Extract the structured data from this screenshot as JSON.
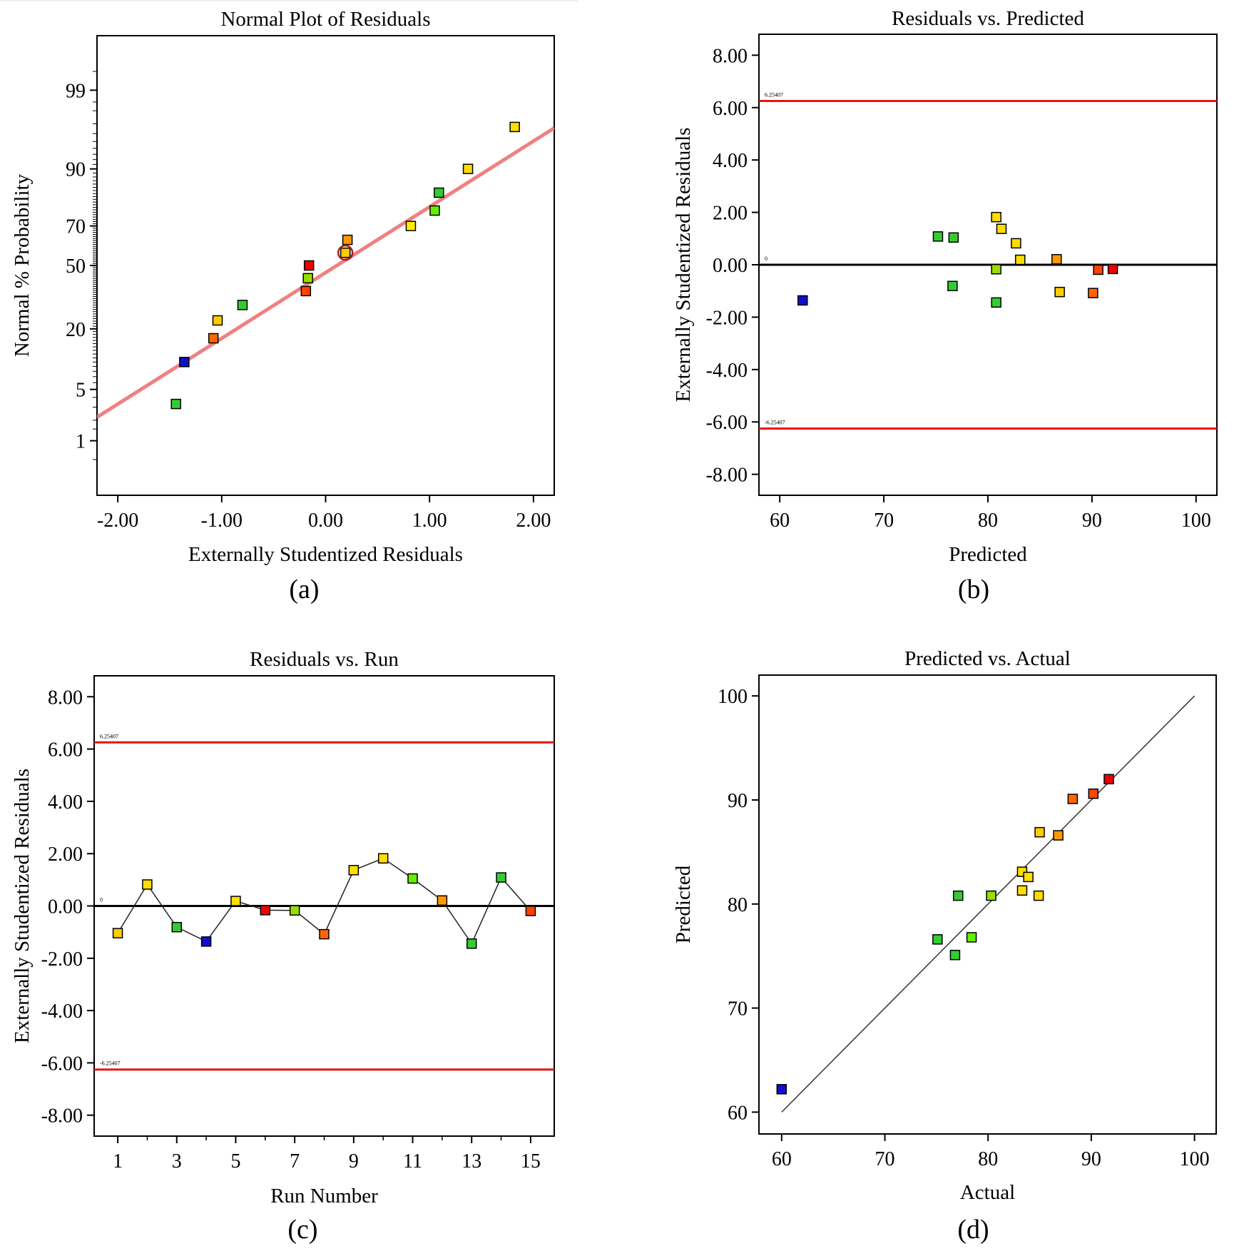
{
  "panels": [
    {
      "id": "a",
      "panel_label": "(a)",
      "chart_data": {
        "type": "scatter",
        "title": "Normal Plot of Residuals",
        "xlabel": "Externally Studentized Residuals",
        "ylabel": "Normal % Probability",
        "xlim": [
          -2.2,
          2.2
        ],
        "x_ticks": [
          "-2.00",
          "-1.00",
          "0.00",
          "1.00",
          "2.00"
        ],
        "y_ticks": [
          "1",
          "5",
          "20",
          "50",
          "70",
          "90",
          "99"
        ],
        "y_scale": "normal-probability",
        "ref_line": {
          "from": [
            -2.2,
            2.2
          ],
          "to": [
            2.2,
            96.6
          ],
          "color": "#f08080"
        },
        "points": [
          {
            "x": -1.44,
            "y": 3.3,
            "color": "#33cc33"
          },
          {
            "x": -1.36,
            "y": 10.0,
            "color": "#1010cc"
          },
          {
            "x": -1.08,
            "y": 16.7,
            "color": "#ff6600"
          },
          {
            "x": -1.04,
            "y": 23.3,
            "color": "#ffcc00"
          },
          {
            "x": -0.8,
            "y": 30.0,
            "color": "#33cc33"
          },
          {
            "x": -0.19,
            "y": 36.7,
            "color": "#ff4400"
          },
          {
            "x": -0.17,
            "y": 43.3,
            "color": "#99dd00"
          },
          {
            "x": -0.16,
            "y": 50.0,
            "color": "#ee0000"
          },
          {
            "x": 0.19,
            "y": 56.7,
            "color": "#ffcc00"
          },
          {
            "x": 0.21,
            "y": 63.3,
            "color": "#ff9900"
          },
          {
            "x": 0.82,
            "y": 70.0,
            "color": "#ffee00"
          },
          {
            "x": 1.05,
            "y": 76.7,
            "color": "#66ee00"
          },
          {
            "x": 1.09,
            "y": 83.3,
            "color": "#33cc33"
          },
          {
            "x": 1.37,
            "y": 90.0,
            "color": "#ffdd00"
          },
          {
            "x": 1.82,
            "y": 96.7,
            "color": "#ffdd00"
          }
        ],
        "circled_point": {
          "x": 0.19,
          "y": 56.7
        },
        "grid": false
      }
    },
    {
      "id": "b",
      "panel_label": "(b)",
      "chart_data": {
        "type": "scatter",
        "title": "Residuals vs. Predicted",
        "xlabel": "Predicted",
        "ylabel": "Externally Studentized Residuals",
        "xlim": [
          58,
          102
        ],
        "ylim": [
          -8.8,
          8.8
        ],
        "x_ticks": [
          "60",
          "70",
          "80",
          "90",
          "100"
        ],
        "y_ticks": [
          "-8.00",
          "-6.00",
          "-4.00",
          "-2.00",
          "0.00",
          "2.00",
          "4.00",
          "6.00",
          "8.00"
        ],
        "limit_lines": [
          {
            "value": 6.25407,
            "label": "6.25407",
            "color": "#ee1111"
          },
          {
            "value": -6.25407,
            "label": "-6.25407",
            "color": "#ee1111"
          }
        ],
        "zero_line": {
          "value": 0,
          "label": "0"
        },
        "points": [
          {
            "x": 62.2,
            "y": -1.36,
            "color": "#1010cc"
          },
          {
            "x": 75.2,
            "y": 1.08,
            "color": "#33cc33"
          },
          {
            "x": 76.7,
            "y": 1.04,
            "color": "#33cc33"
          },
          {
            "x": 76.6,
            "y": -0.81,
            "color": "#33cc33"
          },
          {
            "x": 80.8,
            "y": 1.82,
            "color": "#ffdd00"
          },
          {
            "x": 81.3,
            "y": 1.37,
            "color": "#ffdd00"
          },
          {
            "x": 82.7,
            "y": 0.82,
            "color": "#ffdd00"
          },
          {
            "x": 83.1,
            "y": 0.19,
            "color": "#ffdd00"
          },
          {
            "x": 80.8,
            "y": -0.17,
            "color": "#99dd00"
          },
          {
            "x": 80.8,
            "y": -1.44,
            "color": "#33cc33"
          },
          {
            "x": 86.6,
            "y": 0.21,
            "color": "#ff9900"
          },
          {
            "x": 86.9,
            "y": -1.04,
            "color": "#ffcc00"
          },
          {
            "x": 90.1,
            "y": -1.08,
            "color": "#ff6600"
          },
          {
            "x": 90.6,
            "y": -0.19,
            "color": "#ff4400"
          },
          {
            "x": 92.0,
            "y": -0.16,
            "color": "#ee0000"
          }
        ],
        "grid": false
      }
    },
    {
      "id": "c",
      "panel_label": "(c)",
      "chart_data": {
        "type": "line",
        "title": "Residuals vs. Run",
        "xlabel": "Run Number",
        "ylabel": "Externally Studentized Residuals",
        "xlim": [
          0.2,
          15.8
        ],
        "ylim": [
          -8.8,
          8.8
        ],
        "x_ticks": [
          "1",
          "3",
          "5",
          "7",
          "9",
          "11",
          "13",
          "15"
        ],
        "y_ticks": [
          "-8.00",
          "-6.00",
          "-4.00",
          "-2.00",
          "0.00",
          "2.00",
          "4.00",
          "6.00",
          "8.00"
        ],
        "limit_lines": [
          {
            "value": 6.25407,
            "label": "6.25407",
            "color": "#ee1111"
          },
          {
            "value": -6.25407,
            "label": "-6.25407",
            "color": "#ee1111"
          }
        ],
        "zero_line": {
          "value": 0,
          "label": "0"
        },
        "points": [
          {
            "x": 1,
            "y": -1.04,
            "color": "#ffcc00"
          },
          {
            "x": 2,
            "y": 0.82,
            "color": "#ffdd00"
          },
          {
            "x": 3,
            "y": -0.81,
            "color": "#33cc33"
          },
          {
            "x": 4,
            "y": -1.36,
            "color": "#1010cc"
          },
          {
            "x": 5,
            "y": 0.19,
            "color": "#ffdd00"
          },
          {
            "x": 6,
            "y": -0.16,
            "color": "#ee0000"
          },
          {
            "x": 7,
            "y": -0.17,
            "color": "#99dd00"
          },
          {
            "x": 8,
            "y": -1.08,
            "color": "#ff6600"
          },
          {
            "x": 9,
            "y": 1.37,
            "color": "#ffdd00"
          },
          {
            "x": 10,
            "y": 1.82,
            "color": "#ffdd00"
          },
          {
            "x": 11,
            "y": 1.05,
            "color": "#66ee00"
          },
          {
            "x": 12,
            "y": 0.21,
            "color": "#ff9900"
          },
          {
            "x": 13,
            "y": -1.44,
            "color": "#33cc33"
          },
          {
            "x": 14,
            "y": 1.09,
            "color": "#33cc33"
          },
          {
            "x": 15,
            "y": -0.19,
            "color": "#ff4400"
          }
        ],
        "grid": false
      }
    },
    {
      "id": "d",
      "panel_label": "(d)",
      "chart_data": {
        "type": "scatter",
        "title": "Predicted vs. Actual",
        "xlabel": "Actual",
        "ylabel": "Predicted",
        "xlim": [
          57.8,
          102.1
        ],
        "ylim": [
          57.9,
          102.0
        ],
        "x_ticks": [
          "60",
          "70",
          "80",
          "90",
          "100"
        ],
        "y_ticks": [
          "60",
          "70",
          "80",
          "90",
          "100"
        ],
        "ref_line": {
          "from": [
            60,
            60
          ],
          "to": [
            100,
            100
          ],
          "color": "#333333"
        },
        "points": [
          {
            "x": 60.0,
            "y": 62.2,
            "color": "#1010cc"
          },
          {
            "x": 75.1,
            "y": 76.6,
            "color": "#33cc33"
          },
          {
            "x": 76.8,
            "y": 75.1,
            "color": "#33cc33"
          },
          {
            "x": 77.1,
            "y": 80.8,
            "color": "#33cc33"
          },
          {
            "x": 78.4,
            "y": 76.8,
            "color": "#66ee00"
          },
          {
            "x": 80.3,
            "y": 80.8,
            "color": "#99dd00"
          },
          {
            "x": 83.3,
            "y": 83.1,
            "color": "#ffdd00"
          },
          {
            "x": 83.3,
            "y": 81.3,
            "color": "#ffdd00"
          },
          {
            "x": 83.9,
            "y": 82.6,
            "color": "#ffdd00"
          },
          {
            "x": 84.9,
            "y": 80.8,
            "color": "#ffdd00"
          },
          {
            "x": 85.0,
            "y": 86.9,
            "color": "#ffcc00"
          },
          {
            "x": 86.8,
            "y": 86.6,
            "color": "#ff9900"
          },
          {
            "x": 88.2,
            "y": 90.1,
            "color": "#ff6600"
          },
          {
            "x": 90.2,
            "y": 90.6,
            "color": "#ff4400"
          },
          {
            "x": 91.7,
            "y": 92.0,
            "color": "#ee0000"
          }
        ],
        "grid": false
      }
    }
  ]
}
